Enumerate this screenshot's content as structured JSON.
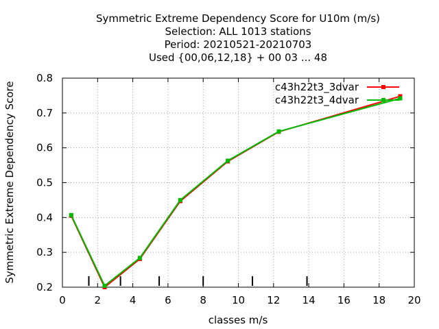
{
  "chart_data": {
    "type": "line",
    "title_lines": [
      "Symmetric Extreme Dependency Score  for U10m (m/s)",
      "Selection: ALL   1013 stations",
      "Period: 20210521-20210703",
      "Used {00,06,12,18} + 00 03 ... 48"
    ],
    "xlabel": "classes m/s",
    "ylabel": "Symmetric Extreme Dependency Score",
    "xlim": [
      0,
      20
    ],
    "ylim": [
      0.2,
      0.8
    ],
    "xticks": [
      "0",
      "2",
      "4",
      "6",
      "8",
      "10",
      "12",
      "14",
      "16",
      "18",
      "20"
    ],
    "yticks": [
      "0.2",
      "0.3",
      "0.4",
      "0.5",
      "0.6",
      "0.7",
      "0.8"
    ],
    "grid": true,
    "legend_position": "top-right",
    "class_boundaries": [
      1.5,
      3.3,
      5.5,
      8.0,
      10.8,
      13.9
    ],
    "series": [
      {
        "name": "c43h22t3_3dvar",
        "color": "#ff0000",
        "x": [
          0.5,
          2.4,
          4.4,
          6.7,
          9.4,
          12.3,
          19.2
        ],
        "y": [
          0.405,
          0.2,
          0.281,
          0.447,
          0.561,
          0.646,
          0.748
        ]
      },
      {
        "name": "c43h22t3_4dvar",
        "color": "#00bb00",
        "x": [
          0.5,
          2.4,
          4.4,
          6.7,
          9.4,
          12.3,
          19.2
        ],
        "y": [
          0.407,
          0.204,
          0.284,
          0.45,
          0.563,
          0.647,
          0.742
        ]
      }
    ]
  }
}
